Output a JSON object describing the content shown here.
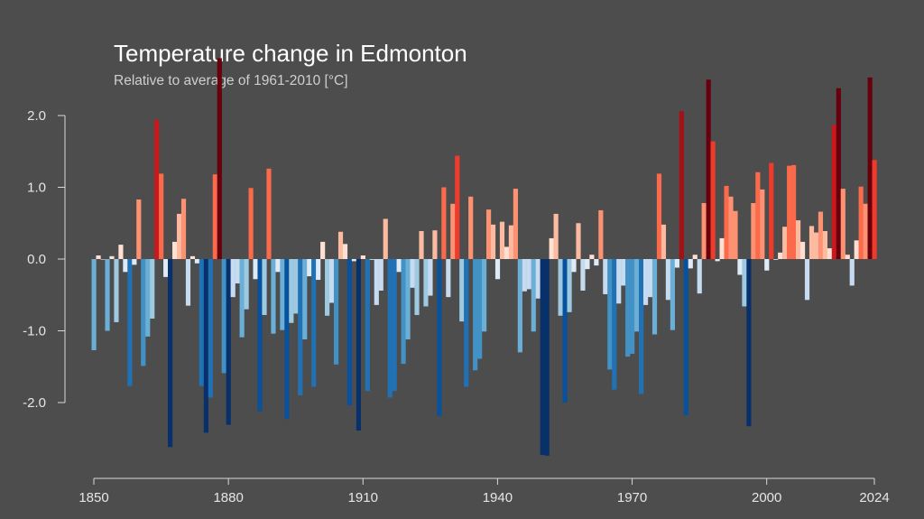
{
  "chart_data": {
    "type": "bar",
    "title": "Temperature change in Edmonton",
    "subtitle": "Relative to average of 1961-2010  [°C]",
    "xlabel": "",
    "ylabel": "",
    "x_start": 1850,
    "x_end": 2024,
    "xlim": [
      1850,
      2024
    ],
    "ylim": [
      -2.75,
      2.85
    ],
    "grid": false,
    "legend": "none",
    "x_ticks": [
      1850,
      1880,
      1910,
      1940,
      1970,
      2000,
      2024
    ],
    "x_tick_labels": [
      "1850",
      "1880",
      "1910",
      "1940",
      "1970",
      "2000",
      "2024"
    ],
    "y_ticks": [
      2.0,
      1.0,
      0.0,
      -1.0,
      -2.0
    ],
    "y_tick_labels": [
      "2.0",
      "1.0",
      "0.0",
      "-1.0",
      "-2.0"
    ],
    "values": [
      -1.27,
      0.05,
      0.0,
      -1.0,
      0.04,
      -0.88,
      0.2,
      -0.18,
      -1.77,
      -0.08,
      0.83,
      -1.49,
      -1.08,
      -0.83,
      1.94,
      1.19,
      -0.25,
      -2.62,
      0.24,
      0.63,
      0.84,
      -0.65,
      0.04,
      -0.06,
      -1.77,
      -2.42,
      -1.93,
      1.18,
      2.8,
      -1.59,
      -2.31,
      -0.53,
      -0.34,
      -1.09,
      -0.7,
      0.99,
      -0.28,
      -2.12,
      -0.78,
      1.26,
      -1.04,
      -0.18,
      -0.99,
      -2.23,
      -0.89,
      -0.76,
      -1.9,
      -1.12,
      -0.24,
      -1.78,
      -0.29,
      0.24,
      -0.79,
      -0.61,
      -1.47,
      0.38,
      0.21,
      -2.04,
      -0.03,
      -2.39,
      0.05,
      -1.84,
      -0.01,
      -0.64,
      -0.44,
      0.56,
      -1.93,
      -1.84,
      -0.18,
      -1.46,
      -1.12,
      -0.4,
      -0.78,
      0.39,
      -0.66,
      -0.51,
      0.4,
      -2.19,
      1.0,
      -0.53,
      0.77,
      1.44,
      -0.87,
      -1.78,
      0.87,
      -1.55,
      -1.39,
      -1.01,
      0.69,
      0.48,
      -0.28,
      0.52,
      0.17,
      0.47,
      0.98,
      -1.3,
      -0.45,
      -0.42,
      -1.01,
      -0.55,
      -2.73,
      -2.74,
      0.29,
      0.63,
      -0.79,
      -2.0,
      -0.74,
      -0.18,
      0.5,
      -0.44,
      -0.14,
      0.06,
      -0.09,
      0.68,
      -0.49,
      -1.54,
      -1.82,
      -0.62,
      -0.37,
      -1.36,
      -1.32,
      -1.01,
      -1.88,
      -0.64,
      -0.53,
      -1.05,
      1.19,
      0.48,
      -0.57,
      -0.99,
      -0.12,
      2.06,
      -2.18,
      -0.13,
      0.06,
      -0.48,
      0.78,
      2.5,
      1.64,
      -0.03,
      0.29,
      1.02,
      0.87,
      0.67,
      -0.22,
      -0.66,
      -2.33,
      0.78,
      1.21,
      0.97,
      -0.16,
      1.34,
      -0.01,
      0.09,
      0.45,
      1.3,
      1.31,
      0.54,
      0.24,
      -0.57,
      0.46,
      0.37,
      0.66,
      0.39,
      0.15,
      1.87,
      2.38,
      0.98,
      0.06,
      -0.37,
      0.26,
      1.01,
      0.77,
      2.53,
      1.38
    ],
    "color_scale": {
      "warm": [
        "#fee0d2",
        "#fcbba1",
        "#fc9272",
        "#fb6a4a",
        "#ef3b2c",
        "#cb181d",
        "#a50f15",
        "#67000d"
      ],
      "cool": [
        "#deebf7",
        "#c6dbef",
        "#9ecae1",
        "#6baed6",
        "#4292c6",
        "#2171b5",
        "#08519c",
        "#08306b"
      ]
    }
  }
}
